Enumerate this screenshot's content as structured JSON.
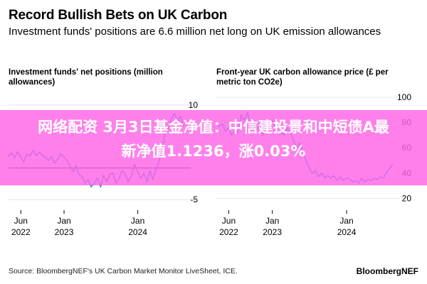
{
  "title": "Record Bullish Bets on UK Carbon",
  "subtitle": "Investment funds' positions are 6.6 million net long on UK emission allowances",
  "overlay": {
    "line1": "网络配资 3月3日基金净值：中信建投景和中短债A最",
    "line2": "新净值1.1236，涨0.03%"
  },
  "source": "Source: BloombergNEF's UK Carbon Market Monitor LiveSheet, ICE.",
  "brand": "BloombergNEF",
  "colors": {
    "line": "#1f9bd7",
    "zero_line": "#000000",
    "grid": "#e6e6e6",
    "overlay": "#ff64e6"
  },
  "chart_data": [
    {
      "type": "line",
      "title": "Investment funds' net positions (million allowances)",
      "x_ticks": [
        {
          "line1": "Jun",
          "line2": "2022",
          "x": "2022-06-01"
        },
        {
          "line1": "Jan",
          "line2": "2023",
          "x": "2023-01-01"
        },
        {
          "line1": "Jan",
          "line2": "2024",
          "x": "2024-01-01"
        }
      ],
      "xlim": [
        "2022-04-01",
        "2024-08-15"
      ],
      "y_ticks": [
        10,
        5,
        0,
        -5
      ],
      "y_tick_labels": [
        "10",
        "",
        "",
        "-5"
      ],
      "ylim": [
        -6,
        12
      ],
      "series": [
        {
          "x": [
            "2022-04-01",
            "2022-04-15",
            "2022-05-01",
            "2022-05-15",
            "2022-06-01",
            "2022-06-15",
            "2022-07-01",
            "2022-07-15",
            "2022-08-01",
            "2022-08-15",
            "2022-09-01",
            "2022-09-15",
            "2022-10-01",
            "2022-10-15",
            "2022-11-01",
            "2022-11-15",
            "2022-12-01",
            "2022-12-15",
            "2023-01-01",
            "2023-01-15",
            "2023-02-01",
            "2023-02-15",
            "2023-03-01",
            "2023-03-15",
            "2023-04-01",
            "2023-04-15",
            "2023-05-01",
            "2023-05-15",
            "2023-06-01",
            "2023-06-15",
            "2023-07-01",
            "2023-07-15",
            "2023-08-01",
            "2023-08-15",
            "2023-09-01",
            "2023-09-15",
            "2023-10-01",
            "2023-10-15",
            "2023-11-01",
            "2023-11-15",
            "2023-12-01",
            "2023-12-15",
            "2024-01-01",
            "2024-01-15",
            "2024-02-01",
            "2024-02-15",
            "2024-03-01",
            "2024-03-15",
            "2024-04-01",
            "2024-04-15",
            "2024-05-01",
            "2024-05-15",
            "2024-06-01",
            "2024-06-15",
            "2024-07-01",
            "2024-07-15",
            "2024-08-01",
            "2024-08-15"
          ],
          "values": [
            1.8,
            2.4,
            1.6,
            2.6,
            1.8,
            0.9,
            2.2,
            1.9,
            2.8,
            2.0,
            2.5,
            2.1,
            1.6,
            1.2,
            1.8,
            0.8,
            1.4,
            2.2,
            1.8,
            1.2,
            0.3,
            -0.6,
            0.4,
            -1.0,
            -1.4,
            -2.4,
            -1.8,
            -3.0,
            -2.4,
            -1.6,
            -3.0,
            -1.2,
            -2.2,
            -1.0,
            -0.8,
            -2.4,
            -1.6,
            -0.4,
            -1.0,
            -2.2,
            -1.2,
            0.6,
            -0.6,
            -1.6,
            -0.8,
            -2.2,
            -0.4,
            -1.8,
            -0.2,
            1.0,
            3.2,
            5.4,
            6.2,
            7.8,
            8.6,
            7.6,
            8.2,
            6.6
          ]
        }
      ]
    },
    {
      "type": "line",
      "title": "Front-year UK carbon allowance price (£ per metric ton CO2e)",
      "x_ticks": [
        {
          "line1": "Jun",
          "line2": "2022",
          "x": "2022-06-01"
        },
        {
          "line1": "Jan",
          "line2": "2023",
          "x": "2023-01-01"
        },
        {
          "line1": "Jan",
          "line2": "2024",
          "x": "2024-01-01"
        }
      ],
      "xlim": [
        "2022-04-01",
        "2024-08-15"
      ],
      "y_ticks": [
        100,
        80,
        60,
        40,
        20
      ],
      "y_tick_labels": [
        "100",
        "80",
        "60",
        "40",
        "20"
      ],
      "ylim": [
        14,
        104
      ],
      "series": [
        {
          "x": [
            "2022-04-01",
            "2022-04-15",
            "2022-05-01",
            "2022-05-15",
            "2022-06-01",
            "2022-06-15",
            "2022-07-01",
            "2022-07-15",
            "2022-08-01",
            "2022-08-15",
            "2022-09-01",
            "2022-09-15",
            "2022-10-01",
            "2022-10-15",
            "2022-11-01",
            "2022-11-15",
            "2022-12-01",
            "2022-12-15",
            "2023-01-01",
            "2023-01-15",
            "2023-02-01",
            "2023-02-15",
            "2023-03-01",
            "2023-03-15",
            "2023-04-01",
            "2023-04-15",
            "2023-05-01",
            "2023-05-15",
            "2023-06-01",
            "2023-06-15",
            "2023-07-01",
            "2023-07-15",
            "2023-08-01",
            "2023-08-15",
            "2023-09-01",
            "2023-09-15",
            "2023-10-01",
            "2023-10-15",
            "2023-11-01",
            "2023-11-15",
            "2023-12-01",
            "2023-12-15",
            "2024-01-01",
            "2024-01-15",
            "2024-02-01",
            "2024-02-15",
            "2024-03-01",
            "2024-03-15",
            "2024-04-01",
            "2024-04-15",
            "2024-05-01",
            "2024-05-15",
            "2024-06-01",
            "2024-06-15",
            "2024-07-01",
            "2024-07-15",
            "2024-08-01",
            "2024-08-15"
          ],
          "values": [
            80,
            77,
            79,
            73,
            76,
            70,
            74,
            72,
            86,
            82,
            88,
            76,
            80,
            74,
            78,
            70,
            76,
            80,
            82,
            74,
            78,
            72,
            70,
            76,
            72,
            66,
            60,
            64,
            56,
            50,
            44,
            40,
            42,
            37,
            40,
            36,
            38,
            36,
            38,
            34,
            37,
            34,
            36,
            35,
            33,
            34,
            32,
            36,
            33,
            35,
            34,
            36,
            35,
            37,
            36,
            41,
            44,
            47
          ]
        }
      ]
    }
  ]
}
